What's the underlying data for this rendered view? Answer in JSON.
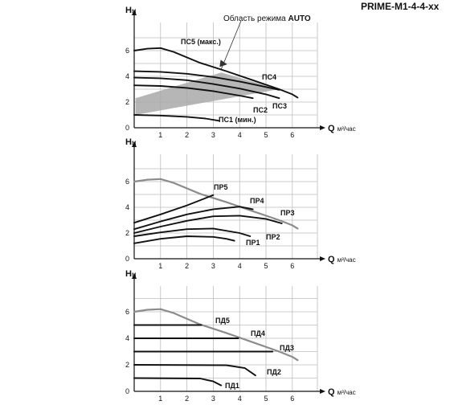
{
  "header": {
    "model": "PRIME-M1-4-4-хх"
  },
  "auto_label": {
    "prefix": "Область режима ",
    "emph": "AUTO"
  },
  "chart_data": [
    {
      "type": "line",
      "title": "",
      "ylabel": "Н",
      "ylabel_unit": "м",
      "xlabel": "Q",
      "xlabel_unit": "м³/час",
      "xlim": [
        0,
        6.8
      ],
      "ylim": [
        0,
        7.5
      ],
      "x_ticks": [
        1,
        2,
        3,
        4,
        5,
        6
      ],
      "y_ticks": [
        0,
        2,
        4,
        6
      ],
      "grid": true,
      "series": [
        {
          "name": "ПС5 (макс.)",
          "points": [
            [
              0,
              6.0
            ],
            [
              0.5,
              6.15
            ],
            [
              1.0,
              6.2
            ],
            [
              1.5,
              5.9
            ],
            [
              2.5,
              5.05
            ],
            [
              3.5,
              4.4
            ],
            [
              4.5,
              3.7
            ],
            [
              5.5,
              3.0
            ],
            [
              6.0,
              2.6
            ],
            [
              6.2,
              2.35
            ]
          ]
        },
        {
          "name": "ПС4",
          "points": [
            [
              0,
              4.4
            ],
            [
              1,
              4.35
            ],
            [
              2,
              4.2
            ],
            [
              3,
              3.95
            ],
            [
              4,
              3.6
            ],
            [
              4.7,
              3.3
            ],
            [
              5.5,
              2.95
            ]
          ]
        },
        {
          "name": "ПС3",
          "points": [
            [
              0,
              3.9
            ],
            [
              1,
              3.85
            ],
            [
              2,
              3.7
            ],
            [
              3,
              3.4
            ],
            [
              4,
              3.05
            ],
            [
              5,
              2.6
            ],
            [
              5.5,
              2.3
            ]
          ]
        },
        {
          "name": "ПС2",
          "points": [
            [
              0,
              3.3
            ],
            [
              1,
              3.25
            ],
            [
              2,
              3.1
            ],
            [
              3,
              2.85
            ],
            [
              4,
              2.5
            ],
            [
              4.5,
              2.3
            ]
          ]
        },
        {
          "name": "ПС1 (мин.)",
          "points": [
            [
              0,
              1.0
            ],
            [
              1,
              0.95
            ],
            [
              2,
              0.85
            ],
            [
              2.7,
              0.72
            ],
            [
              3.2,
              0.55
            ]
          ]
        }
      ],
      "auto_region": {
        "name": "Область режима AUTO",
        "points": [
          [
            0.05,
            2.3
          ],
          [
            3.3,
            4.3
          ],
          [
            5.5,
            3.0
          ],
          [
            0.05,
            1.0
          ]
        ]
      }
    },
    {
      "type": "line",
      "title": "",
      "ylabel": "Н",
      "ylabel_unit": "м",
      "xlabel": "Q",
      "xlabel_unit": "м³/час",
      "xlim": [
        0,
        6.8
      ],
      "ylim": [
        0,
        7.5
      ],
      "x_ticks": [
        1,
        2,
        3,
        4,
        5,
        6
      ],
      "y_ticks": [
        0,
        2,
        4,
        6
      ],
      "grid": true,
      "envelope": {
        "name": "max",
        "points": [
          [
            0,
            6.0
          ],
          [
            0.5,
            6.15
          ],
          [
            1.0,
            6.2
          ],
          [
            1.5,
            5.9
          ],
          [
            2.5,
            5.05
          ],
          [
            3.5,
            4.4
          ],
          [
            4.5,
            3.7
          ],
          [
            5.5,
            3.0
          ],
          [
            6.0,
            2.6
          ],
          [
            6.2,
            2.35
          ]
        ]
      },
      "series": [
        {
          "name": "ПР5",
          "points": [
            [
              0,
              2.8
            ],
            [
              1,
              3.45
            ],
            [
              2,
              4.15
            ],
            [
              3,
              4.95
            ]
          ]
        },
        {
          "name": "ПР4",
          "points": [
            [
              0,
              2.3
            ],
            [
              1,
              2.9
            ],
            [
              2,
              3.45
            ],
            [
              3,
              3.85
            ],
            [
              4,
              4.05
            ],
            [
              4.5,
              3.85
            ]
          ]
        },
        {
          "name": "ПР3",
          "points": [
            [
              0,
              2.0
            ],
            [
              1,
              2.5
            ],
            [
              2,
              2.95
            ],
            [
              3,
              3.3
            ],
            [
              4,
              3.35
            ],
            [
              5,
              3.1
            ],
            [
              5.6,
              2.75
            ]
          ]
        },
        {
          "name": "ПР2",
          "points": [
            [
              0,
              1.75
            ],
            [
              1,
              2.05
            ],
            [
              2,
              2.3
            ],
            [
              3,
              2.35
            ],
            [
              4,
              2.0
            ],
            [
              4.4,
              1.75
            ]
          ]
        },
        {
          "name": "ПР1",
          "points": [
            [
              0,
              1.2
            ],
            [
              1,
              1.55
            ],
            [
              2,
              1.75
            ],
            [
              3,
              1.7
            ],
            [
              3.5,
              1.55
            ],
            [
              3.8,
              1.4
            ]
          ]
        }
      ]
    },
    {
      "type": "line",
      "title": "",
      "ylabel": "Н",
      "ylabel_unit": "м",
      "xlabel": "Q",
      "xlabel_unit": "м³/час",
      "xlim": [
        0,
        6.8
      ],
      "ylim": [
        0,
        7.5
      ],
      "x_ticks": [
        1,
        2,
        3,
        4,
        5,
        6
      ],
      "y_ticks": [
        0,
        2,
        4,
        6
      ],
      "grid": true,
      "envelope": {
        "name": "max",
        "points": [
          [
            0,
            6.0
          ],
          [
            0.5,
            6.15
          ],
          [
            1.0,
            6.2
          ],
          [
            1.5,
            5.9
          ],
          [
            2.5,
            5.05
          ],
          [
            3.5,
            4.4
          ],
          [
            4.5,
            3.7
          ],
          [
            5.5,
            3.0
          ],
          [
            6.0,
            2.6
          ],
          [
            6.2,
            2.35
          ]
        ]
      },
      "series": [
        {
          "name": "ПД5",
          "points": [
            [
              0,
              5.0
            ],
            [
              2.55,
              5.0
            ]
          ]
        },
        {
          "name": "ПД4",
          "points": [
            [
              0,
              4.0
            ],
            [
              3.95,
              4.0
            ]
          ]
        },
        {
          "name": "ПД3",
          "points": [
            [
              0,
              3.0
            ],
            [
              5.25,
              3.0
            ]
          ]
        },
        {
          "name": "ПД2",
          "points": [
            [
              0,
              2.0
            ],
            [
              3.5,
              1.97
            ],
            [
              4.2,
              1.75
            ],
            [
              4.6,
              1.2
            ]
          ]
        },
        {
          "name": "ПД1",
          "points": [
            [
              0,
              1.0
            ],
            [
              2.5,
              0.97
            ],
            [
              3.0,
              0.75
            ],
            [
              3.3,
              0.45
            ]
          ]
        }
      ]
    }
  ]
}
